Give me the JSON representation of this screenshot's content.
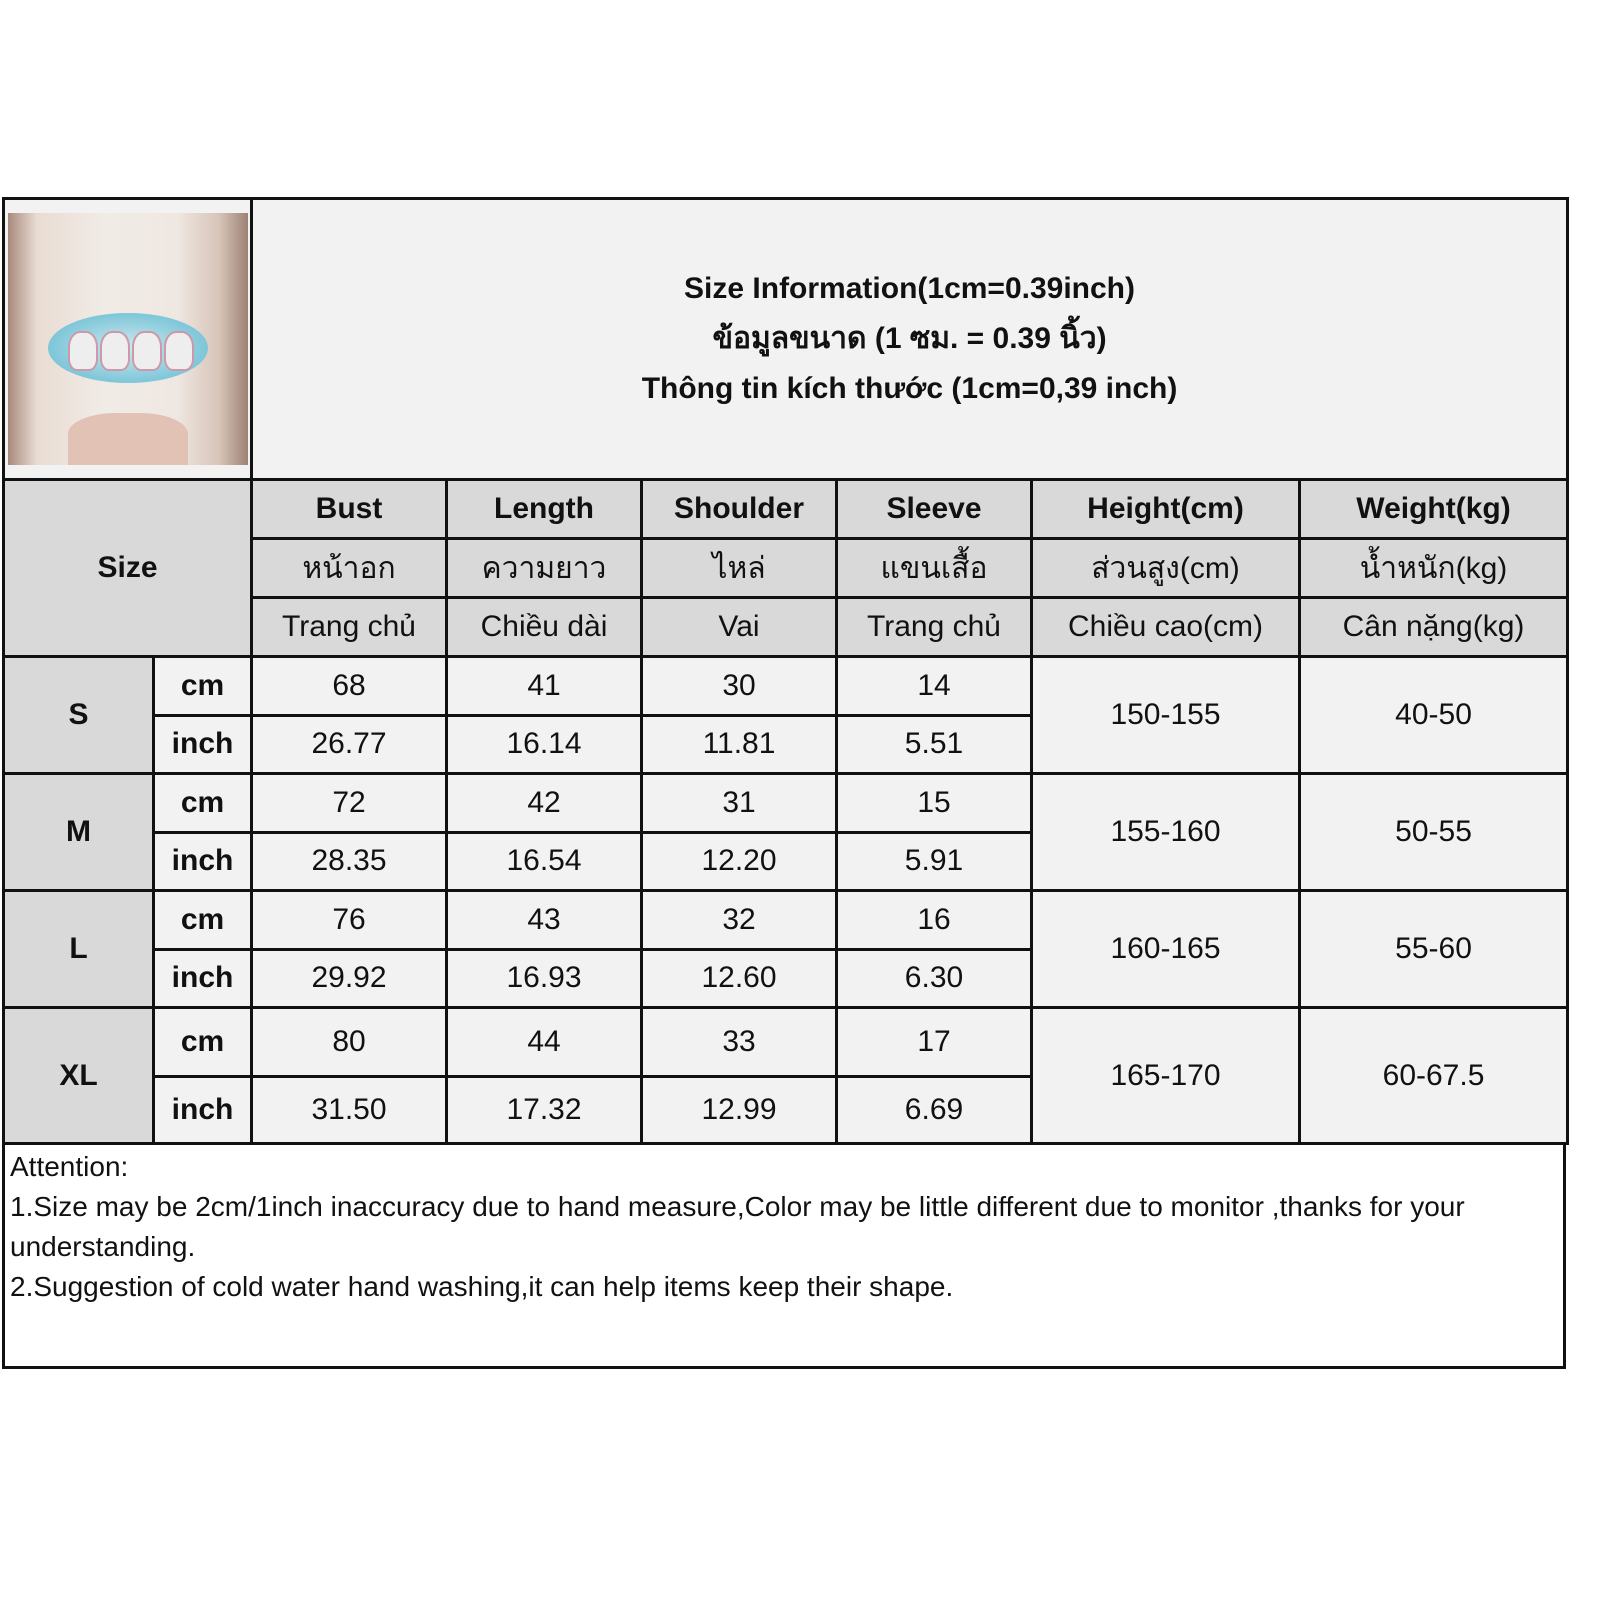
{
  "title": {
    "line_en": "Size Information(1cm=0.39inch)",
    "line_th": "ข้อมูลขนาด (1 ซม. = 0.39 นิ้ว)",
    "line_vi": "Thông tin kích thước (1cm=0,39 inch)"
  },
  "size_label": "Size",
  "columns": [
    {
      "en": "Bust",
      "th": "หน้าอก",
      "vi": "Trang chủ"
    },
    {
      "en": "Length",
      "th": "ความยาว",
      "vi": "Chiều dài"
    },
    {
      "en": "Shoulder",
      "th": "ไหล่",
      "vi": "Vai"
    },
    {
      "en": "Sleeve",
      "th": "แขนเสื้อ",
      "vi": "Trang chủ"
    },
    {
      "en": "Height(cm)",
      "th": "ส่วนสูง(cm)",
      "vi": "Chiều cao(cm)"
    },
    {
      "en": "Weight(kg)",
      "th": "น้ำหนัก(kg)",
      "vi": "Cân nặng(kg)"
    }
  ],
  "units": {
    "cm": "cm",
    "inch": "inch"
  },
  "rows": [
    {
      "size": "S",
      "cm": [
        "68",
        "41",
        "30",
        "14"
      ],
      "inch": [
        "26.77",
        "16.14",
        "11.81",
        "5.51"
      ],
      "height": "150-155",
      "weight": "40-50"
    },
    {
      "size": "M",
      "cm": [
        "72",
        "42",
        "31",
        "15"
      ],
      "inch": [
        "28.35",
        "16.54",
        "12.20",
        "5.91"
      ],
      "height": "155-160",
      "weight": "50-55"
    },
    {
      "size": "L",
      "cm": [
        "76",
        "43",
        "32",
        "16"
      ],
      "inch": [
        "29.92",
        "16.93",
        "12.60",
        "6.30"
      ],
      "height": "160-165",
      "weight": "55-60"
    },
    {
      "size": "XL",
      "cm": [
        "80",
        "44",
        "33",
        "17"
      ],
      "inch": [
        "31.50",
        "17.32",
        "12.99",
        "6.69"
      ],
      "height": "165-170",
      "weight": "60-67.5"
    }
  ],
  "attention": {
    "heading": "Attention:",
    "note1": "1.Size may be 2cm/1inch inaccuracy due to hand measure,Color may be little different due to monitor ,thanks for your understanding.",
    "note2": "2.Suggestion of cold water hand washing,it can help items keep their shape."
  },
  "colors": {
    "header_bg": "#d9d9d9",
    "cell_bg": "#f2f2f2",
    "border": "#111111"
  }
}
